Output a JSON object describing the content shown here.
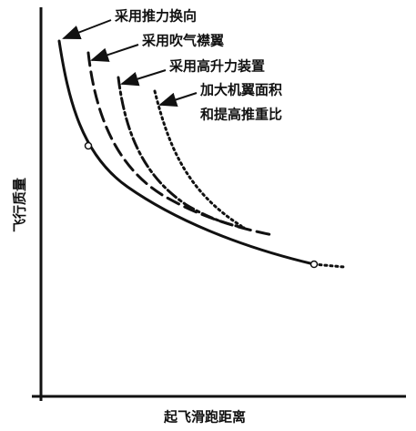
{
  "axes": {
    "y_label": "飞行质量",
    "x_label": "起飞滑跑距离"
  },
  "curves": [
    {
      "label": "采用推力换向"
    },
    {
      "label": "采用吹气襟翼"
    },
    {
      "label": "采用高升力装置"
    },
    {
      "label_lines": [
        "加大机翼面积",
        "和提高推重比"
      ]
    }
  ]
}
